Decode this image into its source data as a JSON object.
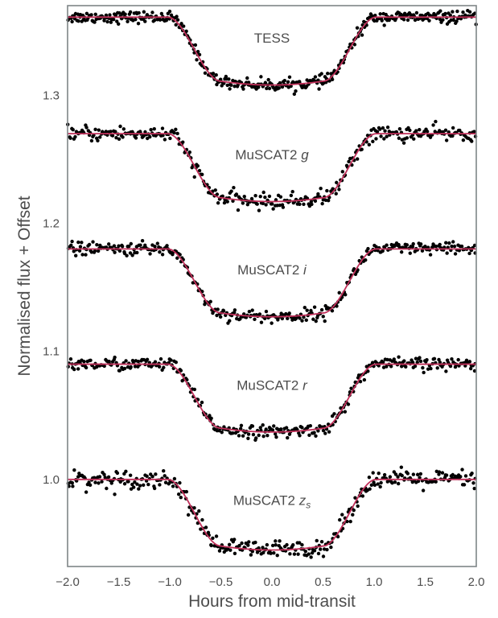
{
  "chart_data": {
    "type": "scatter",
    "xlabel": "Hours from mid-transit",
    "ylabel": "Normalised flux + Offset",
    "xlim": [
      -2.0,
      2.0
    ],
    "ylim": [
      0.932,
      1.37
    ],
    "xticks": [
      -2.0,
      -1.5,
      -1.0,
      -0.5,
      0.0,
      0.5,
      1.0,
      1.5,
      2.0
    ],
    "xtick_labels": [
      "−2.0",
      "−1.5",
      "−1.0",
      "−0.5",
      "0.0",
      "0.5",
      "1.0",
      "1.5",
      "2.0"
    ],
    "yticks": [
      1.0,
      1.1,
      1.2,
      1.3
    ],
    "ytick_labels": [
      "1.0",
      "1.1",
      "1.2",
      "1.3"
    ],
    "grid": false,
    "legend": "none",
    "colors": {
      "points": "#000000",
      "model": "#c0305a",
      "axes": "#7f8587",
      "text": "#4d4d4d"
    },
    "series": [
      {
        "label": "TESS",
        "label_main": "TESS",
        "label_var": "",
        "label_sub": "",
        "baseline": 1.361,
        "depth": 0.05,
        "t1": 1.02,
        "t2": 0.5,
        "noise": 0.0022,
        "n_points": 420,
        "label_x": 0.0,
        "label_y": 1.341
      },
      {
        "label": "MuSCAT2 g",
        "label_main": "MuSCAT2 ",
        "label_var": "g",
        "label_sub": "",
        "baseline": 1.27,
        "depth": 0.05,
        "t1": 1.02,
        "t2": 0.5,
        "noise": 0.003,
        "n_points": 330,
        "label_x": 0.0,
        "label_y": 1.25
      },
      {
        "label": "MuSCAT2 i",
        "label_main": "MuSCAT2 ",
        "label_var": "i",
        "label_sub": "",
        "baseline": 1.18,
        "depth": 0.05,
        "t1": 1.02,
        "t2": 0.5,
        "noise": 0.0025,
        "n_points": 330,
        "label_x": 0.0,
        "label_y": 1.16
      },
      {
        "label": "MuSCAT2 r",
        "label_main": "MuSCAT2 ",
        "label_var": "r",
        "label_sub": "",
        "baseline": 1.09,
        "depth": 0.05,
        "t1": 1.02,
        "t2": 0.5,
        "noise": 0.0025,
        "n_points": 330,
        "label_x": 0.0,
        "label_y": 1.07
      },
      {
        "label": "MuSCAT2 zs",
        "label_main": "MuSCAT2 ",
        "label_var": "z",
        "label_sub": "s",
        "baseline": 1.0,
        "depth": 0.052,
        "t1": 1.02,
        "t2": 0.5,
        "noise": 0.0035,
        "n_points": 330,
        "label_x": 0.0,
        "label_y": 0.98
      }
    ]
  }
}
